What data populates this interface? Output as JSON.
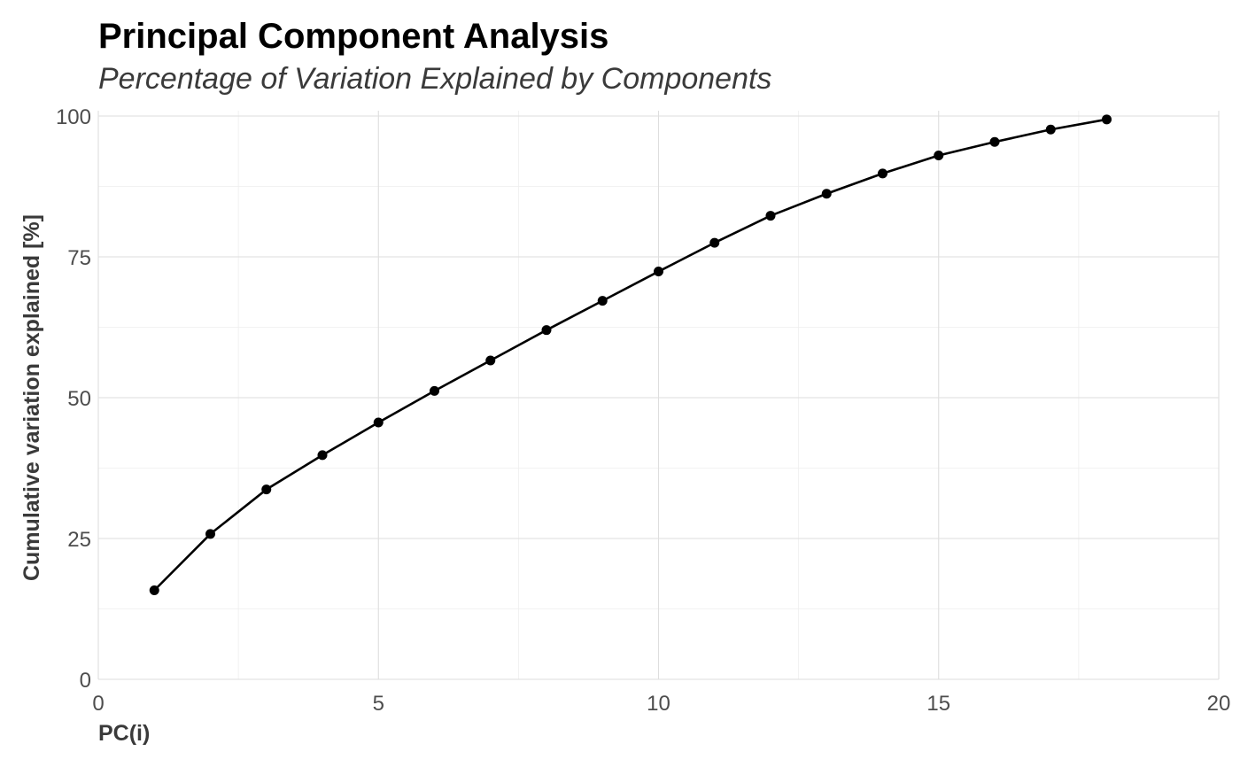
{
  "chart_data": {
    "type": "line",
    "title": "Principal Component Analysis",
    "subtitle": "Percentage of Variation Explained by Components",
    "xlabel": "PC(i)",
    "ylabel": "Cumulative variation explained [%]",
    "xlim": [
      0,
      20
    ],
    "ylim": [
      0,
      100
    ],
    "x_ticks": [
      0,
      5,
      10,
      15,
      20
    ],
    "y_ticks": [
      0,
      25,
      50,
      75,
      100
    ],
    "x_minor": [
      2.5,
      7.5,
      12.5,
      17.5
    ],
    "y_minor": [
      12.5,
      37.5,
      62.5,
      87.5
    ],
    "grid": true,
    "legend": "none",
    "series": [
      {
        "x": [
          1,
          2,
          3,
          4,
          5,
          6,
          7,
          8,
          9,
          10,
          11,
          12,
          13,
          14,
          15,
          16,
          17,
          18
        ],
        "values": [
          15.8,
          25.8,
          33.7,
          39.8,
          45.6,
          51.2,
          56.6,
          62.0,
          67.2,
          72.4,
          77.5,
          82.3,
          86.2,
          89.8,
          93.0,
          95.4,
          97.6,
          99.4
        ]
      }
    ],
    "colors": {
      "line": "#000000",
      "point": "#000000",
      "grid_major": "#dedede",
      "grid_minor": "#eeeeee"
    }
  }
}
